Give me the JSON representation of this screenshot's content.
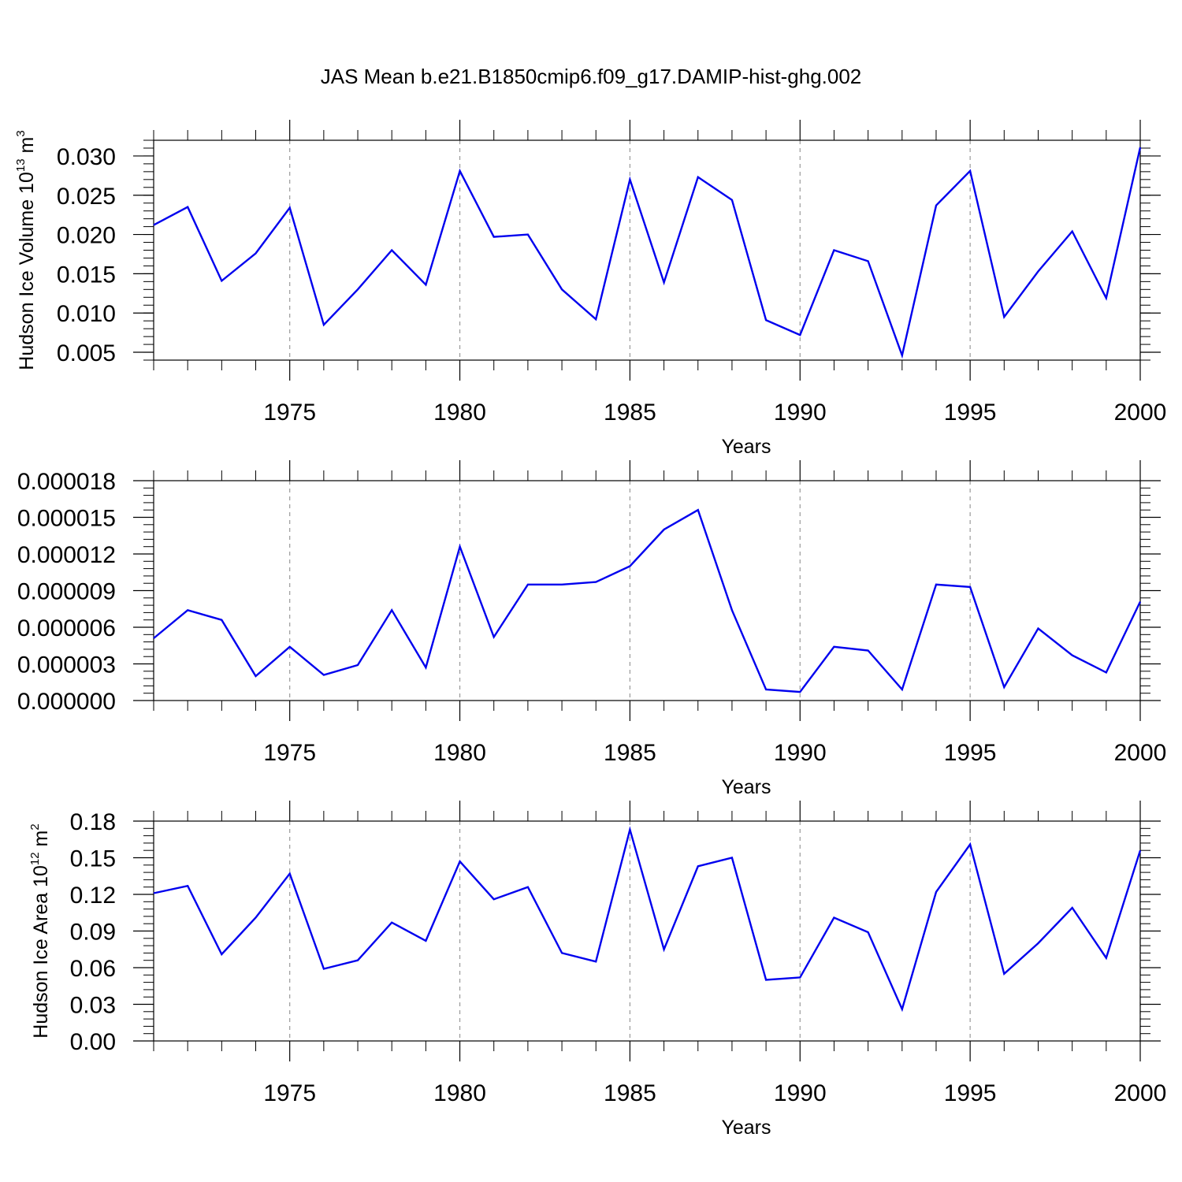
{
  "title": "JAS Mean b.e21.B1850cmip6.f09_g17.DAMIP-hist-ghg.002",
  "colors": {
    "series": "#0000ee",
    "grid": "#999999",
    "axes": "#000000"
  },
  "chart_data": [
    {
      "type": "line",
      "name": "volume",
      "ylabel": "Hudson Ice Volume 10",
      "ylabel_exp": "13",
      "ylabel_unit": " m",
      "ylabel_unit_exp": "3",
      "xlabel": "Years",
      "xlim": [
        1971,
        2000
      ],
      "ylim": [
        0.004,
        0.032
      ],
      "grid_x": [
        1975,
        1980,
        1985,
        1990,
        1995,
        2000
      ],
      "xticks": [
        "1975",
        "1980",
        "1985",
        "1990",
        "1995",
        "2000"
      ],
      "yticks": [
        "0.005",
        "0.010",
        "0.015",
        "0.020",
        "0.025",
        "0.030"
      ],
      "x": [
        1971,
        1972,
        1973,
        1974,
        1975,
        1976,
        1977,
        1978,
        1979,
        1980,
        1981,
        1982,
        1983,
        1984,
        1985,
        1986,
        1987,
        1988,
        1989,
        1990,
        1991,
        1992,
        1993,
        1994,
        1995,
        1996,
        1997,
        1998,
        1999,
        2000
      ],
      "values": [
        0.0212,
        0.0235,
        0.0141,
        0.0176,
        0.0234,
        0.0085,
        0.013,
        0.018,
        0.0136,
        0.0281,
        0.0197,
        0.02,
        0.013,
        0.0092,
        0.027,
        0.0139,
        0.0273,
        0.0244,
        0.0091,
        0.0072,
        0.018,
        0.0166,
        0.0046,
        0.0237,
        0.0281,
        0.0095,
        0.0153,
        0.0204,
        0.0119,
        0.0311
      ]
    },
    {
      "type": "line",
      "name": "thin",
      "ylabel": "",
      "xlabel": "Years",
      "xlim": [
        1971,
        2000
      ],
      "ylim": [
        0,
        1.8e-05
      ],
      "grid_x": [
        1975,
        1980,
        1985,
        1990,
        1995,
        2000
      ],
      "xticks": [
        "1975",
        "1980",
        "1985",
        "1990",
        "1995",
        "2000"
      ],
      "yticks": [
        "0.000000",
        "0.000003",
        "0.000006",
        "0.000009",
        "0.000012",
        "0.000015",
        "0.000018"
      ],
      "x": [
        1971,
        1972,
        1973,
        1974,
        1975,
        1976,
        1977,
        1978,
        1979,
        1980,
        1981,
        1982,
        1983,
        1984,
        1985,
        1986,
        1987,
        1988,
        1989,
        1990,
        1991,
        1992,
        1993,
        1994,
        1995,
        1996,
        1997,
        1998,
        1999,
        2000
      ],
      "values": [
        5.1e-06,
        7.4e-06,
        6.6e-06,
        2e-06,
        4.4e-06,
        2.1e-06,
        2.9e-06,
        7.4e-06,
        2.7e-06,
        1.26e-05,
        5.2e-06,
        9.5e-06,
        9.5e-06,
        9.7e-06,
        1.1e-05,
        1.4e-05,
        1.56e-05,
        7.4e-06,
        9e-07,
        7e-07,
        4.4e-06,
        4.1e-06,
        9e-07,
        9.5e-06,
        9.3e-06,
        1.1e-06,
        5.9e-06,
        3.7e-06,
        2.3e-06,
        8.1e-06
      ]
    },
    {
      "type": "line",
      "name": "area",
      "ylabel": "Hudson Ice Area 10",
      "ylabel_exp": "12",
      "ylabel_unit": " m",
      "ylabel_unit_exp": "2",
      "xlabel": "Years",
      "xlim": [
        1971,
        2000
      ],
      "ylim": [
        0,
        0.18
      ],
      "grid_x": [
        1975,
        1980,
        1985,
        1990,
        1995,
        2000
      ],
      "xticks": [
        "1975",
        "1980",
        "1985",
        "1990",
        "1995",
        "2000"
      ],
      "yticks": [
        "0.00",
        "0.03",
        "0.06",
        "0.09",
        "0.12",
        "0.15",
        "0.18"
      ],
      "x": [
        1971,
        1972,
        1973,
        1974,
        1975,
        1976,
        1977,
        1978,
        1979,
        1980,
        1981,
        1982,
        1983,
        1984,
        1985,
        1986,
        1987,
        1988,
        1989,
        1990,
        1991,
        1992,
        1993,
        1994,
        1995,
        1996,
        1997,
        1998,
        1999,
        2000
      ],
      "values": [
        0.121,
        0.127,
        0.071,
        0.101,
        0.137,
        0.059,
        0.066,
        0.097,
        0.082,
        0.147,
        0.116,
        0.126,
        0.072,
        0.065,
        0.173,
        0.075,
        0.143,
        0.15,
        0.05,
        0.052,
        0.101,
        0.089,
        0.026,
        0.122,
        0.161,
        0.055,
        0.08,
        0.109,
        0.068,
        0.156
      ]
    }
  ]
}
